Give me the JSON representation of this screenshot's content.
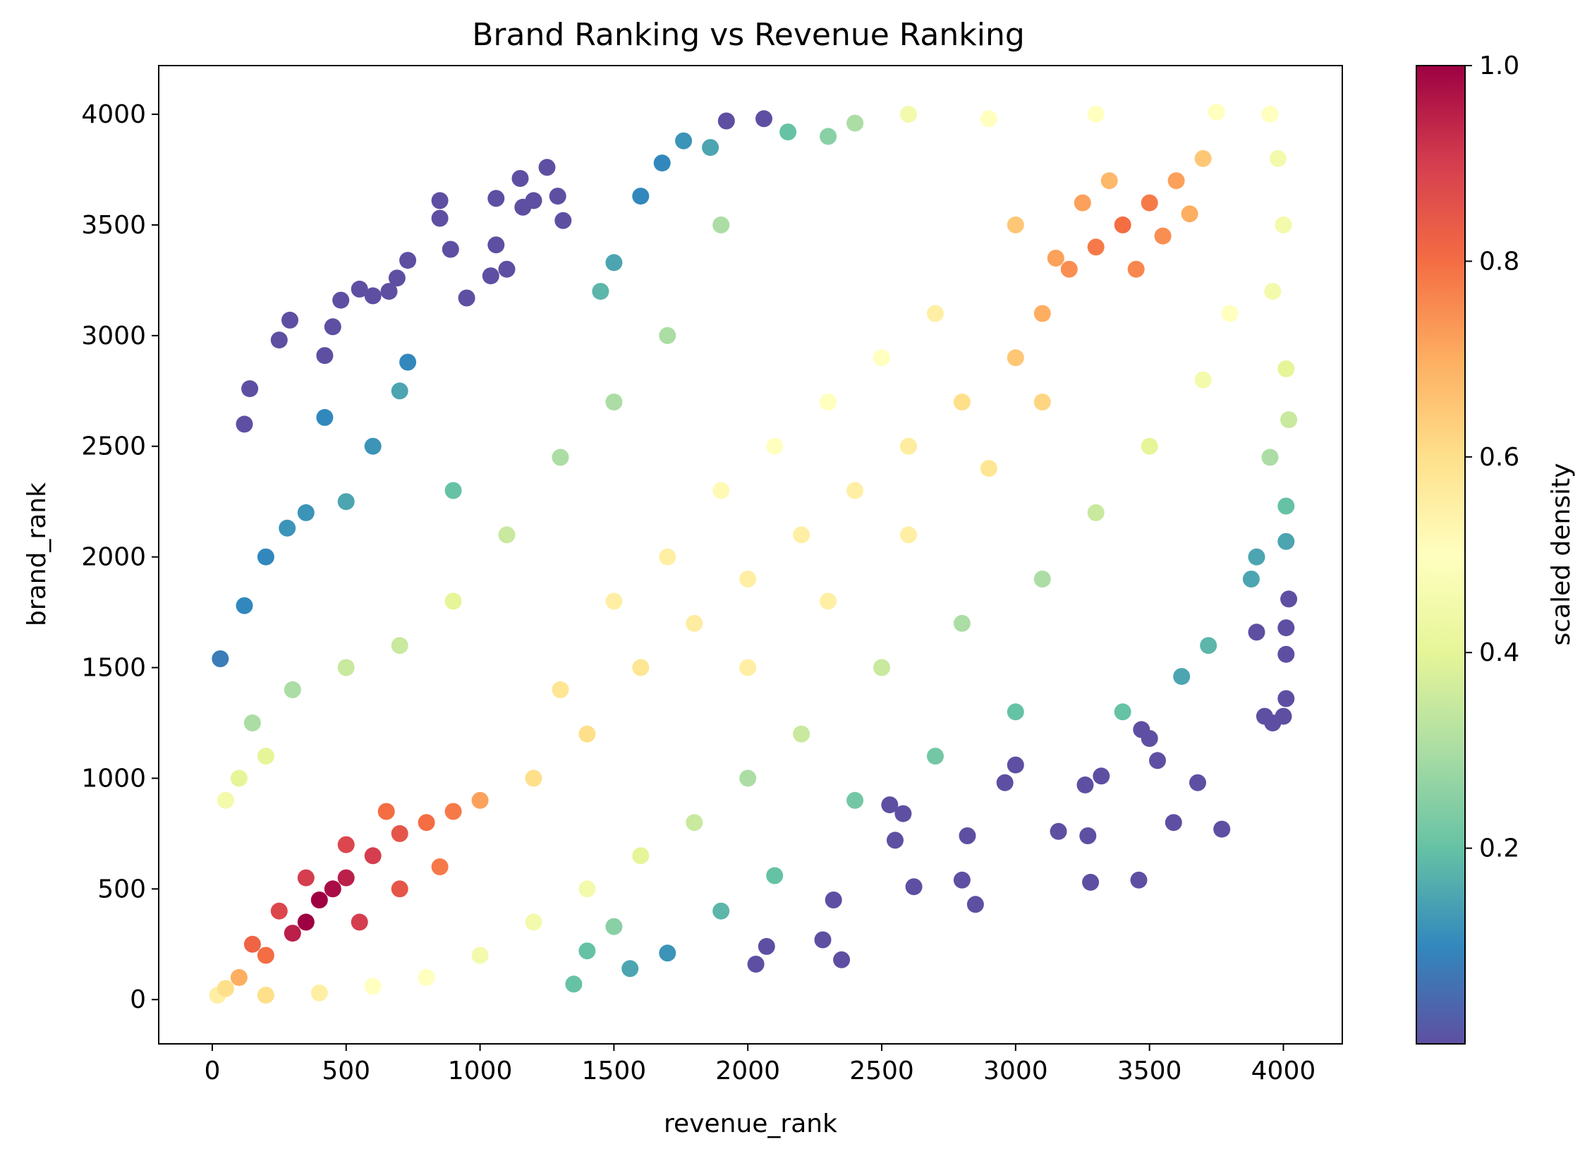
{
  "chart_data": {
    "type": "scatter",
    "title": "Brand Ranking vs Revenue Ranking",
    "xlabel": "revenue_rank",
    "ylabel": "brand_rank",
    "xlim": [
      -200,
      4220
    ],
    "ylim": [
      -200,
      4220
    ],
    "xticks": [
      0,
      500,
      1000,
      1500,
      2000,
      2500,
      3000,
      3500,
      4000
    ],
    "yticks": [
      0,
      500,
      1000,
      1500,
      2000,
      2500,
      3000,
      3500,
      4000
    ],
    "xtick_labels": [
      "0",
      "500",
      "1000",
      "1500",
      "2000",
      "2500",
      "3000",
      "3500",
      "4000"
    ],
    "ytick_labels": [
      "0",
      "500",
      "1000",
      "1500",
      "2000",
      "2500",
      "3000",
      "3500",
      "4000"
    ],
    "grid": false,
    "colorbar": {
      "label": "scaled density",
      "colormap": "Spectral_r",
      "range": [
        0.0,
        1.0
      ],
      "ticks": [
        0.2,
        0.4,
        0.6,
        0.8,
        1.0
      ],
      "tick_labels": [
        "0.2",
        "0.4",
        "0.6",
        "0.8",
        "1.0"
      ]
    },
    "point_description": "approximately 4000 points; density concentrated along diagonal with clusters near (400, 450) and (3400, 3500)",
    "sample_points": [
      [
        120,
        2600,
        0.0
      ],
      [
        140,
        2760,
        0.0
      ],
      [
        250,
        2980,
        0.0
      ],
      [
        290,
        3070,
        0.0
      ],
      [
        420,
        2910,
        0.0
      ],
      [
        450,
        3040,
        0.0
      ],
      [
        480,
        3160,
        0.0
      ],
      [
        550,
        3210,
        0.0
      ],
      [
        600,
        3180,
        0.0
      ],
      [
        660,
        3200,
        0.0
      ],
      [
        690,
        3260,
        0.0
      ],
      [
        730,
        3340,
        0.0
      ],
      [
        850,
        3610,
        0.0
      ],
      [
        850,
        3530,
        0.0
      ],
      [
        890,
        3390,
        0.0
      ],
      [
        1060,
        3620,
        0.0
      ],
      [
        1060,
        3410,
        0.0
      ],
      [
        1150,
        3710,
        0.0
      ],
      [
        1200,
        3610,
        0.0
      ],
      [
        1250,
        3760,
        0.0
      ],
      [
        1290,
        3630,
        0.0
      ],
      [
        1310,
        3520,
        0.0
      ],
      [
        1920,
        3970,
        0.0
      ],
      [
        2060,
        3980,
        0.0
      ],
      [
        1160,
        3580,
        0.0
      ],
      [
        1100,
        3300,
        0.0
      ],
      [
        950,
        3170,
        0.0
      ],
      [
        1040,
        3270,
        0.0
      ],
      [
        2350,
        180,
        0.0
      ],
      [
        2280,
        270,
        0.0
      ],
      [
        2320,
        450,
        0.0
      ],
      [
        2620,
        510,
        0.0
      ],
      [
        2800,
        540,
        0.0
      ],
      [
        2850,
        430,
        0.0
      ],
      [
        2820,
        740,
        0.0
      ],
      [
        3160,
        760,
        0.0
      ],
      [
        3270,
        740,
        0.0
      ],
      [
        3280,
        530,
        0.0
      ],
      [
        3460,
        540,
        0.0
      ],
      [
        3590,
        800,
        0.0
      ],
      [
        3770,
        770,
        0.0
      ],
      [
        3680,
        980,
        0.0
      ],
      [
        3320,
        1010,
        0.0
      ],
      [
        3260,
        970,
        0.0
      ],
      [
        3000,
        1060,
        0.0
      ],
      [
        2960,
        980,
        0.0
      ],
      [
        2030,
        160,
        0.0
      ],
      [
        2070,
        240,
        0.0
      ],
      [
        3930,
        1280,
        0.0
      ],
      [
        3960,
        1250,
        0.0
      ],
      [
        4000,
        1280,
        0.0
      ],
      [
        4010,
        1360,
        0.0
      ],
      [
        4010,
        1560,
        0.0
      ],
      [
        4010,
        1680,
        0.0
      ],
      [
        4020,
        1810,
        0.0
      ],
      [
        3900,
        1660,
        0.0
      ],
      [
        3470,
        1220,
        0.0
      ],
      [
        3500,
        1180,
        0.0
      ],
      [
        3530,
        1080,
        0.0
      ],
      [
        2550,
        720,
        0.0
      ],
      [
        2530,
        880,
        0.0
      ],
      [
        2580,
        840,
        0.0
      ],
      [
        30,
        1540,
        0.08
      ],
      [
        120,
        1780,
        0.1
      ],
      [
        200,
        2000,
        0.1
      ],
      [
        280,
        2130,
        0.12
      ],
      [
        350,
        2200,
        0.12
      ],
      [
        500,
        2250,
        0.15
      ],
      [
        600,
        2500,
        0.12
      ],
      [
        730,
        2880,
        0.1
      ],
      [
        700,
        2750,
        0.15
      ],
      [
        420,
        2630,
        0.1
      ],
      [
        1600,
        3630,
        0.1
      ],
      [
        1680,
        3780,
        0.1
      ],
      [
        1760,
        3880,
        0.12
      ],
      [
        1860,
        3850,
        0.15
      ],
      [
        2150,
        3920,
        0.2
      ],
      [
        1500,
        3330,
        0.15
      ],
      [
        1450,
        3200,
        0.18
      ],
      [
        900,
        2300,
        0.2
      ],
      [
        3900,
        2000,
        0.15
      ],
      [
        3880,
        1900,
        0.15
      ],
      [
        3720,
        1600,
        0.18
      ],
      [
        3620,
        1460,
        0.15
      ],
      [
        3400,
        1300,
        0.2
      ],
      [
        3000,
        1300,
        0.2
      ],
      [
        2700,
        1100,
        0.22
      ],
      [
        2400,
        900,
        0.22
      ],
      [
        2100,
        560,
        0.2
      ],
      [
        1900,
        400,
        0.18
      ],
      [
        1700,
        210,
        0.12
      ],
      [
        1560,
        140,
        0.15
      ],
      [
        1350,
        70,
        0.2
      ],
      [
        1400,
        220,
        0.2
      ],
      [
        1500,
        330,
        0.25
      ],
      [
        4010,
        2070,
        0.15
      ],
      [
        4010,
        2230,
        0.2
      ],
      [
        3950,
        2450,
        0.3
      ],
      [
        4020,
        2620,
        0.35
      ],
      [
        4010,
        2850,
        0.4
      ],
      [
        3960,
        3200,
        0.45
      ],
      [
        4000,
        3500,
        0.45
      ],
      [
        3980,
        3800,
        0.45
      ],
      [
        3950,
        4000,
        0.5
      ],
      [
        3750,
        4010,
        0.5
      ],
      [
        3300,
        4000,
        0.5
      ],
      [
        2900,
        3980,
        0.5
      ],
      [
        2600,
        4000,
        0.45
      ],
      [
        2400,
        3960,
        0.3
      ],
      [
        2300,
        3900,
        0.25
      ],
      [
        1900,
        3500,
        0.3
      ],
      [
        1700,
        3000,
        0.3
      ],
      [
        1500,
        2700,
        0.3
      ],
      [
        1300,
        2450,
        0.3
      ],
      [
        1100,
        2100,
        0.35
      ],
      [
        900,
        1800,
        0.4
      ],
      [
        700,
        1600,
        0.35
      ],
      [
        500,
        1500,
        0.35
      ],
      [
        300,
        1400,
        0.3
      ],
      [
        150,
        1250,
        0.3
      ],
      [
        50,
        900,
        0.45
      ],
      [
        100,
        1000,
        0.4
      ],
      [
        200,
        1100,
        0.4
      ],
      [
        2500,
        1500,
        0.35
      ],
      [
        2800,
        1700,
        0.3
      ],
      [
        3100,
        1900,
        0.3
      ],
      [
        3300,
        2200,
        0.35
      ],
      [
        3500,
        2500,
        0.4
      ],
      [
        3700,
        2800,
        0.45
      ],
      [
        3800,
        3100,
        0.5
      ],
      [
        2200,
        1200,
        0.35
      ],
      [
        2000,
        1000,
        0.3
      ],
      [
        1800,
        800,
        0.35
      ],
      [
        1600,
        650,
        0.4
      ],
      [
        1400,
        500,
        0.45
      ],
      [
        1200,
        350,
        0.45
      ],
      [
        1000,
        200,
        0.45
      ],
      [
        800,
        100,
        0.5
      ],
      [
        600,
        60,
        0.5
      ],
      [
        400,
        30,
        0.55
      ],
      [
        200,
        20,
        0.6
      ],
      [
        1200,
        1000,
        0.6
      ],
      [
        1400,
        1200,
        0.6
      ],
      [
        1600,
        1500,
        0.58
      ],
      [
        1800,
        1700,
        0.56
      ],
      [
        2000,
        1900,
        0.55
      ],
      [
        2200,
        2100,
        0.55
      ],
      [
        2400,
        2300,
        0.55
      ],
      [
        2600,
        2500,
        0.56
      ],
      [
        2800,
        2700,
        0.6
      ],
      [
        3000,
        2900,
        0.65
      ],
      [
        1500,
        1800,
        0.55
      ],
      [
        1700,
        2000,
        0.55
      ],
      [
        1900,
        2300,
        0.52
      ],
      [
        2100,
        2500,
        0.5
      ],
      [
        2300,
        2700,
        0.5
      ],
      [
        2500,
        2900,
        0.5
      ],
      [
        2700,
        3100,
        0.55
      ],
      [
        1300,
        1400,
        0.58
      ],
      [
        2000,
        1500,
        0.55
      ],
      [
        2300,
        1800,
        0.55
      ],
      [
        2600,
        2100,
        0.55
      ],
      [
        2900,
        2400,
        0.58
      ],
      [
        3100,
        2700,
        0.62
      ],
      [
        3200,
        3300,
        0.75
      ],
      [
        3300,
        3400,
        0.78
      ],
      [
        3400,
        3500,
        0.8
      ],
      [
        3500,
        3600,
        0.78
      ],
      [
        3600,
        3700,
        0.72
      ],
      [
        3100,
        3100,
        0.7
      ],
      [
        3700,
        3800,
        0.65
      ],
      [
        3450,
        3300,
        0.76
      ],
      [
        3250,
        3600,
        0.72
      ],
      [
        3550,
        3450,
        0.75
      ],
      [
        3000,
        3500,
        0.65
      ],
      [
        3650,
        3550,
        0.7
      ],
      [
        3350,
        3700,
        0.68
      ],
      [
        3150,
        3350,
        0.72
      ],
      [
        100,
        100,
        0.7
      ],
      [
        200,
        200,
        0.8
      ],
      [
        300,
        300,
        0.95
      ],
      [
        350,
        350,
        1.0
      ],
      [
        400,
        450,
        1.0
      ],
      [
        450,
        500,
        0.98
      ],
      [
        500,
        550,
        0.95
      ],
      [
        600,
        650,
        0.9
      ],
      [
        700,
        750,
        0.85
      ],
      [
        800,
        800,
        0.8
      ],
      [
        900,
        850,
        0.78
      ],
      [
        1000,
        900,
        0.72
      ],
      [
        250,
        400,
        0.88
      ],
      [
        350,
        550,
        0.9
      ],
      [
        500,
        700,
        0.88
      ],
      [
        650,
        850,
        0.8
      ],
      [
        550,
        350,
        0.9
      ],
      [
        700,
        500,
        0.85
      ],
      [
        850,
        600,
        0.78
      ],
      [
        150,
        250,
        0.82
      ],
      [
        50,
        50,
        0.6
      ],
      [
        20,
        20,
        0.55
      ]
    ]
  }
}
